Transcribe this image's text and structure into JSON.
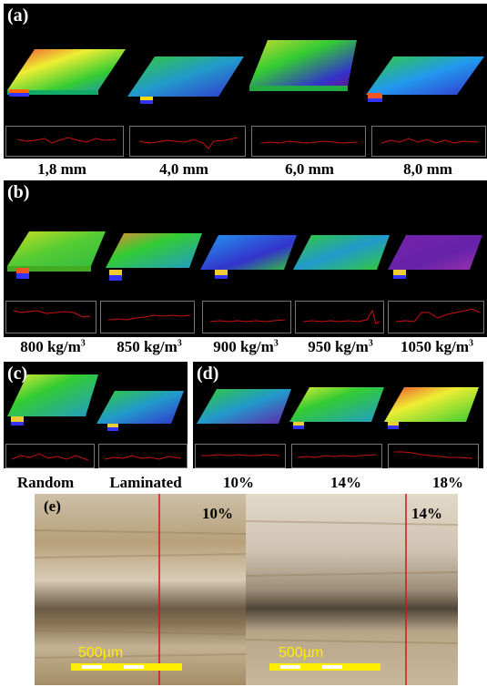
{
  "panels": {
    "a": {
      "label": "(a)",
      "captions": [
        "1,8 mm",
        "4,0 mm",
        "6,0 mm",
        "8,0 mm"
      ]
    },
    "b": {
      "label": "(b)",
      "captions": [
        "800 kg/m",
        "850 kg/m",
        "900 kg/m",
        "950 kg/m",
        "1050 kg/m"
      ],
      "unit_sup": "3"
    },
    "c": {
      "label": "(c)",
      "captions": [
        "Random",
        "Laminated"
      ]
    },
    "d": {
      "label": "(d)",
      "captions": [
        "10%",
        "14%",
        "18%"
      ]
    },
    "e": {
      "label": "(e)",
      "left_tag": "10%",
      "right_tag": "14%",
      "scale_bar": "500µm"
    }
  },
  "colors": {
    "background": "#000000",
    "profile_line": "#cc1111",
    "scale_bar": "#ffee00",
    "divider": "#d01818"
  }
}
